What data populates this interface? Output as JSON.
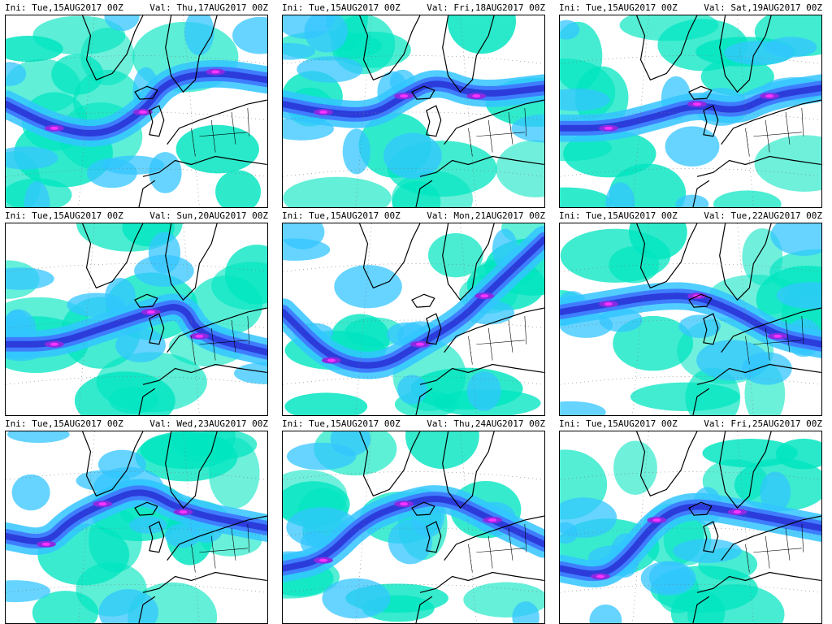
{
  "panels": [
    {
      "ini": "Ini: Tue,15AUG2017 00Z",
      "val": "Val: Thu,17AUG2017 00Z"
    },
    {
      "ini": "Ini: Tue,15AUG2017 00Z",
      "val": "Val: Fri,18AUG2017 00Z"
    },
    {
      "ini": "Ini: Tue,15AUG2017 00Z",
      "val": "Val: Sat,19AUG2017 00Z"
    },
    {
      "ini": "Ini: Tue,15AUG2017 00Z",
      "val": "Val: Sun,20AUG2017 00Z"
    },
    {
      "ini": "Ini: Tue,15AUG2017 00Z",
      "val": "Val: Mon,21AUG2017 00Z"
    },
    {
      "ini": "Ini: Tue,15AUG2017 00Z",
      "val": "Val: Tue,22AUG2017 00Z"
    },
    {
      "ini": "Ini: Tue,15AUG2017 00Z",
      "val": "Val: Wed,23AUG2017 00Z"
    },
    {
      "ini": "Ini: Tue,15AUG2017 00Z",
      "val": "Val: Thu,24AUG2017 00Z"
    },
    {
      "ini": "Ini: Tue,15AUG2017 00Z",
      "val": "Val: Fri,25AUG2017 00Z"
    }
  ],
  "colors": {
    "cyan": "#00e5c0",
    "light_blue": "#33c6ff",
    "blue": "#3f7dff",
    "dark_blue": "#2b3cdb",
    "purple": "#8a2be2",
    "magenta": "#ff33ff",
    "land_line": "#000000"
  }
}
